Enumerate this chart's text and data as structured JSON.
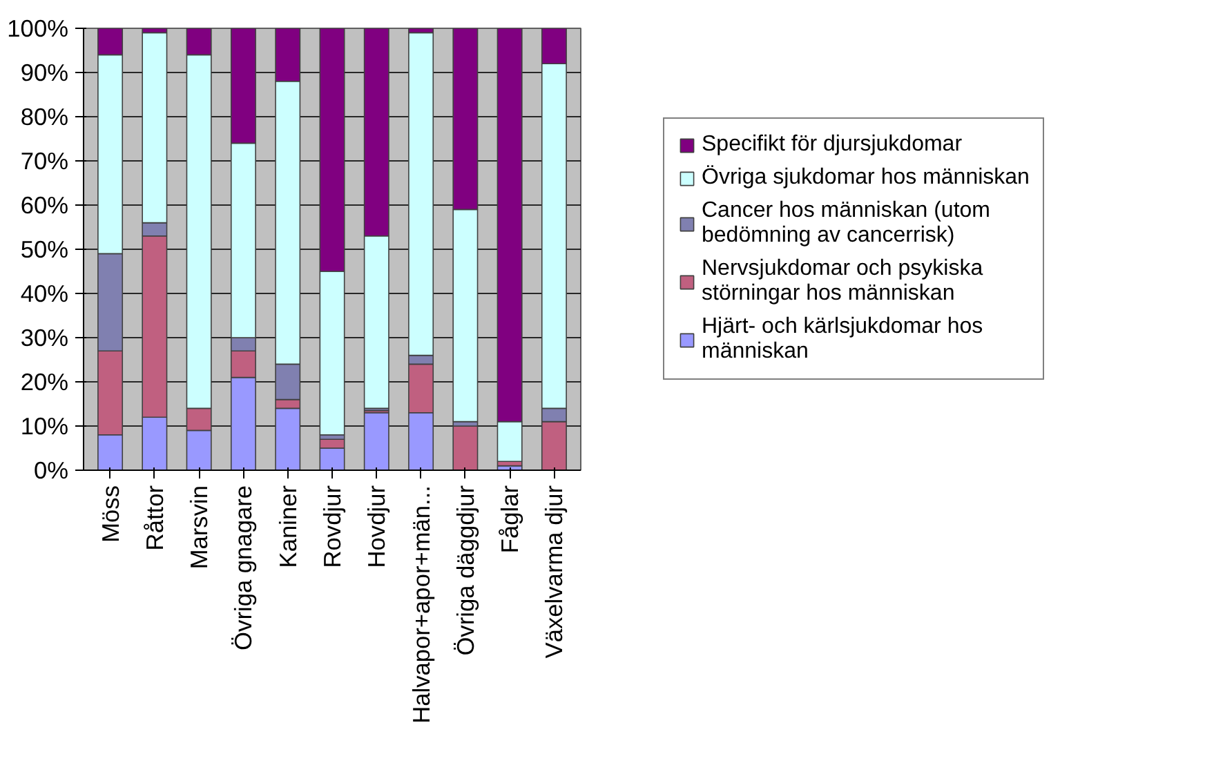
{
  "chart_data": {
    "type": "bar",
    "stacked": true,
    "categories": [
      "Möss",
      "Råttor",
      "Marsvin",
      "Övriga gnagare",
      "Kaniner",
      "Rovdjur",
      "Hovdjur",
      "Halvapor+apor+män...",
      "Övriga däggdjur",
      "Fåglar",
      "Växelvarma djur"
    ],
    "series": [
      {
        "name": "Hjärt- och kärlsjukdomar hos människan",
        "color": "#9999ff",
        "values": [
          8,
          12,
          9,
          21,
          14,
          5,
          13,
          13,
          0,
          1,
          0
        ]
      },
      {
        "name": "Nervsjukdomar och psykiska störningar hos människan",
        "color": "#c06080",
        "values": [
          19,
          41,
          5,
          6,
          2,
          2,
          0.5,
          11,
          10,
          1,
          11
        ]
      },
      {
        "name": "Cancer hos människan (utom bedömning av cancerrisk)",
        "color": "#8080b0",
        "values": [
          22,
          3,
          0,
          3,
          8,
          1,
          0.5,
          2,
          1,
          0,
          3
        ]
      },
      {
        "name": "Övriga sjukdomar hos människan",
        "color": "#ccffff",
        "values": [
          45,
          43,
          80,
          44,
          64,
          37,
          39,
          73,
          48,
          9,
          78
        ]
      },
      {
        "name": "Specifikt för djursjukdomar",
        "color": "#800080",
        "values": [
          6,
          1,
          6,
          26,
          12,
          55,
          47,
          1,
          41,
          89,
          8
        ]
      }
    ],
    "ylim": [
      0,
      100
    ],
    "yticks": [
      {
        "value": 0,
        "label": "0%"
      },
      {
        "value": 10,
        "label": "10%"
      },
      {
        "value": 20,
        "label": "20%"
      },
      {
        "value": 30,
        "label": "30%"
      },
      {
        "value": 40,
        "label": "40%"
      },
      {
        "value": 50,
        "label": "50%"
      },
      {
        "value": 60,
        "label": "60%"
      },
      {
        "value": 70,
        "label": "70%"
      },
      {
        "value": 80,
        "label": "80%"
      },
      {
        "value": 90,
        "label": "90%"
      },
      {
        "value": 100,
        "label": "100%"
      }
    ],
    "grid": "y",
    "legend": "right"
  }
}
